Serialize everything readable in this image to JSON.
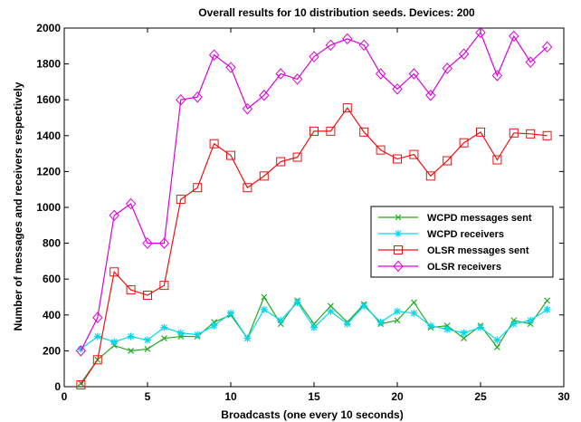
{
  "chart_data": {
    "type": "line",
    "title": "Overall results for 10 distribution seeds. Devices: 200",
    "xlabel": "Broadcasts (one every 10 seconds)",
    "ylabel": "Number of messages and receivers respectively",
    "xlim": [
      0,
      30
    ],
    "ylim": [
      0,
      2000
    ],
    "xticks": [
      0,
      5,
      10,
      15,
      20,
      25,
      30
    ],
    "yticks": [
      0,
      200,
      400,
      600,
      800,
      1000,
      1200,
      1400,
      1600,
      1800,
      2000
    ],
    "grid": false,
    "legend_position": "center-right",
    "x": [
      1,
      2,
      3,
      4,
      5,
      6,
      7,
      8,
      9,
      10,
      11,
      12,
      13,
      14,
      15,
      16,
      17,
      18,
      19,
      20,
      21,
      22,
      23,
      24,
      25,
      26,
      27,
      28,
      29
    ],
    "series": [
      {
        "name": "WCPD messages sent",
        "color": "#22aa22",
        "marker": "x",
        "values": [
          20,
          150,
          230,
          200,
          210,
          270,
          280,
          280,
          360,
          400,
          270,
          500,
          350,
          480,
          350,
          450,
          360,
          460,
          350,
          370,
          470,
          330,
          340,
          270,
          340,
          220,
          370,
          350,
          480
        ]
      },
      {
        "name": "WCPD receivers",
        "color": "#00d8ee",
        "marker": "asterisk",
        "values": [
          210,
          280,
          250,
          280,
          260,
          330,
          300,
          290,
          340,
          410,
          270,
          430,
          370,
          470,
          330,
          420,
          350,
          450,
          360,
          420,
          410,
          340,
          320,
          300,
          330,
          260,
          350,
          370,
          430
        ]
      },
      {
        "name": "OLSR messages sent",
        "color": "#ee1111",
        "marker": "square",
        "values": [
          10,
          150,
          640,
          540,
          510,
          565,
          1045,
          1110,
          1355,
          1290,
          1110,
          1175,
          1255,
          1280,
          1425,
          1425,
          1555,
          1420,
          1320,
          1270,
          1295,
          1175,
          1260,
          1360,
          1420,
          1265,
          1415,
          1410,
          1400
        ]
      },
      {
        "name": "OLSR receivers",
        "color": "#dd00dd",
        "marker": "diamond",
        "values": [
          200,
          385,
          955,
          1020,
          800,
          800,
          1600,
          1615,
          1850,
          1780,
          1550,
          1625,
          1745,
          1715,
          1840,
          1905,
          1940,
          1905,
          1745,
          1660,
          1745,
          1625,
          1775,
          1855,
          1975,
          1735,
          1955,
          1810,
          1895
        ]
      }
    ]
  }
}
